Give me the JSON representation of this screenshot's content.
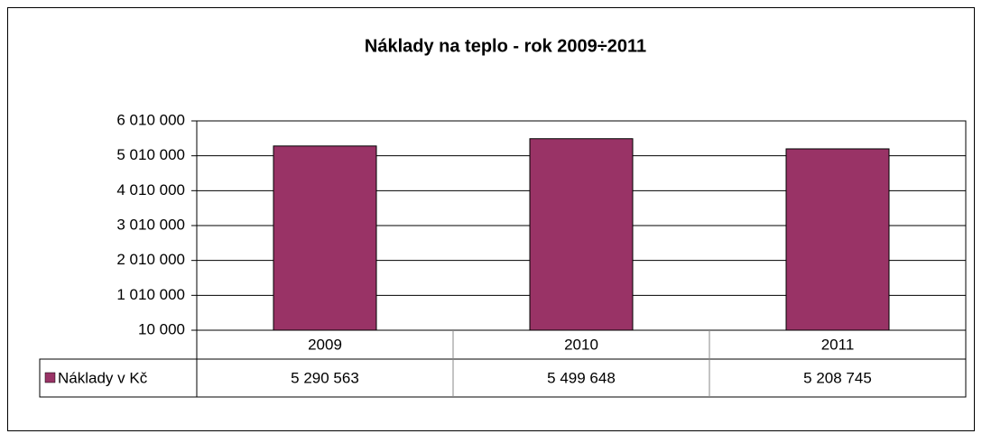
{
  "chart_data": {
    "type": "bar",
    "title": "Náklady na teplo - rok 2009÷2011",
    "categories": [
      "2009",
      "2010",
      "2011"
    ],
    "series": [
      {
        "name": "Náklady v Kč",
        "color": "#993366",
        "values": [
          5290563,
          5499648,
          5208745
        ],
        "value_labels": [
          "5 290 563",
          "5 499 648",
          "5 208 745"
        ]
      }
    ],
    "ylim": [
      10000,
      6010000
    ],
    "yticks": [
      {
        "value": 10000,
        "label": "10 000"
      },
      {
        "value": 1010000,
        "label": "1 010 000"
      },
      {
        "value": 2010000,
        "label": "2 010 000"
      },
      {
        "value": 3010000,
        "label": "3 010 000"
      },
      {
        "value": 4010000,
        "label": "4 010 000"
      },
      {
        "value": 5010000,
        "label": "5 010 000"
      },
      {
        "value": 6010000,
        "label": "6 010 000"
      }
    ],
    "grid": true,
    "data_table": true
  }
}
